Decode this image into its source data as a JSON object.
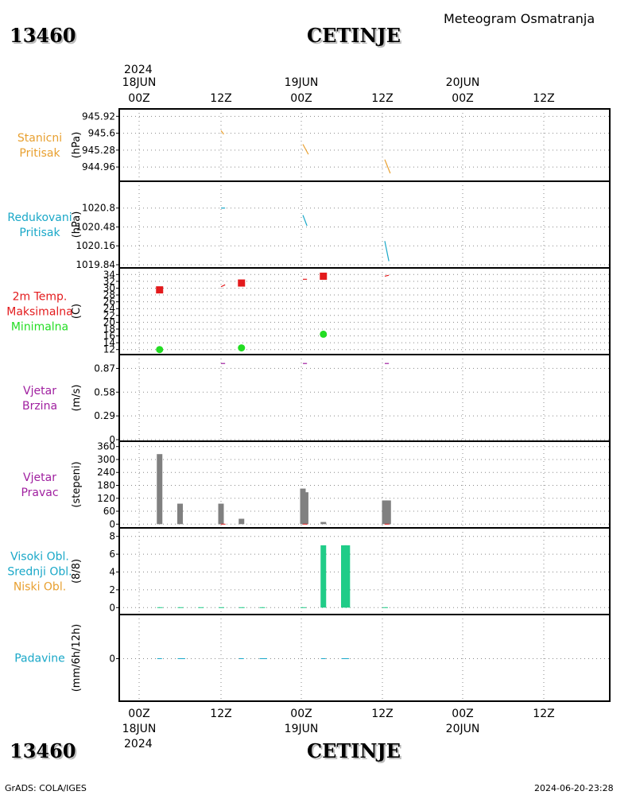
{
  "header": {
    "station_id": "13460",
    "station_name": "CETINJE",
    "subtitle": "Meteogram Osmatranja"
  },
  "footer": {
    "station_id": "13460",
    "station_name": "CETINJE",
    "credit": "GrADS: COLA/IGES",
    "timestamp": "2024-06-20-23:28"
  },
  "time_axis": {
    "top_year": "2024",
    "bottom_year": "2024",
    "ticks": [
      "00Z",
      "12Z",
      "00Z",
      "12Z",
      "00Z",
      "12Z"
    ],
    "dates": [
      {
        "label": "18JUN",
        "tick": 0
      },
      {
        "label": "19JUN",
        "tick": 2
      },
      {
        "label": "20JUN",
        "tick": 4
      }
    ]
  },
  "colors": {
    "station_pressure": "#e8a030",
    "reduced_pressure": "#1aa8c8",
    "temp_max": "#e31a1c",
    "temp_min": "#22dd22",
    "wind": "#a020a0",
    "bars": "#808080",
    "cloud": "#20cc88",
    "precip": "#1aa8c8"
  },
  "chart_data": [
    {
      "type": "line",
      "panel": "station_pressure",
      "labels": [
        "Stanicni",
        "Pritisak"
      ],
      "ylabel": "(hPa)",
      "yticks": [
        "945.92",
        "945.6",
        "945.28",
        "944.96"
      ],
      "ylim": [
        944.72,
        946.0
      ],
      "segments": [
        [
          [
            12.0,
            945.65
          ],
          [
            12.4,
            945.58
          ]
        ],
        [
          [
            24.0,
            945.39
          ],
          [
            24.8,
            945.2
          ]
        ],
        [
          [
            36.0,
            945.1
          ],
          [
            36.8,
            944.84
          ]
        ]
      ]
    },
    {
      "type": "line",
      "panel": "reduced_pressure",
      "labels": [
        "Redukovani",
        "Pritisak"
      ],
      "ylabel": "(hPa)",
      "yticks": [
        "1020.8",
        "1020.48",
        "1020.16",
        "1019.84"
      ],
      "ylim": [
        1019.84,
        1021.2
      ],
      "segments": [
        [
          [
            12.0,
            1020.8
          ],
          [
            12.6,
            1020.8
          ]
        ],
        [
          [
            24.0,
            1020.68
          ],
          [
            24.6,
            1020.5
          ]
        ],
        [
          [
            36.0,
            1020.24
          ],
          [
            36.6,
            1019.9
          ]
        ]
      ]
    },
    {
      "type": "scatter",
      "panel": "temperature",
      "labels": [
        "2m Temp.",
        "Maksimalna",
        "Minimalna"
      ],
      "ylabel": "(C)",
      "yticks": [
        "12",
        "14",
        "16",
        "18",
        "20",
        "22",
        "24",
        "26",
        "28",
        "30",
        "32",
        "34"
      ],
      "ylim": [
        11,
        35
      ],
      "max_points": [
        [
          3,
          29.5
        ],
        [
          15,
          31.5
        ],
        [
          27,
          33.5
        ]
      ],
      "min_points": [
        [
          3,
          12.0
        ],
        [
          15,
          12.5
        ],
        [
          27,
          16.5
        ]
      ],
      "temp_segments": [
        [
          [
            12.0,
            30.4
          ],
          [
            12.6,
            31.0
          ]
        ],
        [
          [
            24.0,
            32.6
          ],
          [
            24.6,
            32.6
          ]
        ],
        [
          [
            36.0,
            33.5
          ],
          [
            36.6,
            33.8
          ]
        ]
      ]
    },
    {
      "type": "line",
      "panel": "wind_speed",
      "labels": [
        "Vjetar",
        "Brzina"
      ],
      "ylabel": "(m/s)",
      "yticks": [
        "0",
        "0.29",
        "0.58",
        "0.87"
      ],
      "ylim": [
        0,
        1.0
      ],
      "segments": [
        [
          [
            12.0,
            0.93
          ],
          [
            12.6,
            0.93
          ]
        ],
        [
          [
            24.0,
            0.93
          ],
          [
            24.6,
            0.93
          ]
        ],
        [
          [
            36.0,
            0.93
          ],
          [
            36.6,
            0.93
          ]
        ]
      ]
    },
    {
      "type": "bar",
      "panel": "wind_direction",
      "labels": [
        "Vjetar",
        "Pravac"
      ],
      "ylabel": "(stepeni)",
      "yticks": [
        "0",
        "60",
        "120",
        "180",
        "240",
        "300",
        "360"
      ],
      "ylim": [
        -10,
        370
      ],
      "bars": [
        [
          3,
          325
        ],
        [
          6,
          95
        ],
        [
          9,
          0
        ],
        [
          12,
          95
        ],
        [
          15,
          25
        ],
        [
          18,
          0
        ],
        [
          24,
          165
        ],
        [
          24.4,
          148
        ],
        [
          27,
          10
        ],
        [
          30,
          0
        ],
        [
          36,
          110
        ],
        [
          36.5,
          110
        ]
      ],
      "note_x": [
        12.2,
        24.2,
        36.2
      ]
    },
    {
      "type": "bar",
      "panel": "clouds",
      "labels": [
        "Visoki Obl.",
        "Srednji Obl.",
        "Niski Obl."
      ],
      "ylabel": "(8/8)",
      "yticks": [
        "0",
        "2",
        "4",
        "6",
        "8"
      ],
      "ylim": [
        -0.6,
        8.6
      ],
      "bars": [
        [
          27,
          7
        ],
        [
          30,
          7
        ],
        [
          30.5,
          7
        ]
      ],
      "ticks_x": [
        3,
        6,
        9,
        12,
        15,
        18,
        24,
        36
      ]
    },
    {
      "type": "line",
      "panel": "precipitation",
      "labels": [
        "Padavine"
      ],
      "ylabel": "(mm/6h/12h)",
      "yticks": [
        "0"
      ],
      "ylim": [
        -1,
        1
      ],
      "zero_marks": [
        3,
        6,
        6.4,
        15,
        18,
        18.4,
        27,
        30,
        30.4
      ]
    }
  ]
}
